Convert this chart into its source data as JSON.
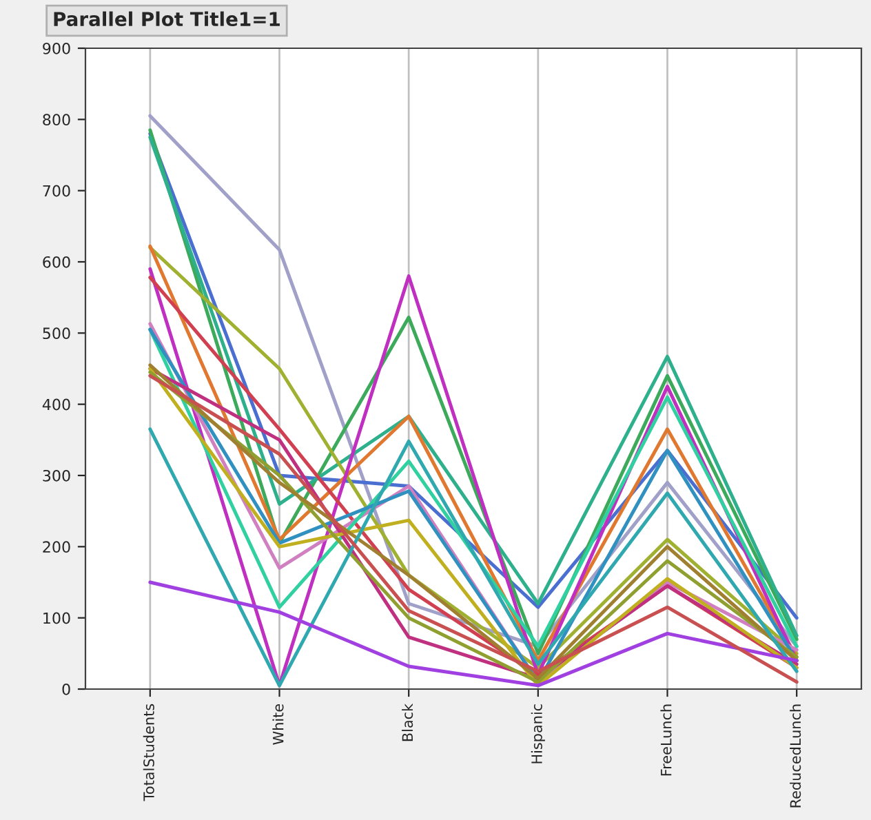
{
  "chart_data": {
    "type": "line",
    "title": "Parallel Plot Title1=1",
    "categories": [
      "TotalStudents",
      "White",
      "Black",
      "Hispanic",
      "FreeLunch",
      "ReducedLunch"
    ],
    "ylim": [
      0,
      900
    ],
    "yticks": [
      0,
      100,
      200,
      300,
      400,
      500,
      600,
      700,
      800,
      900
    ],
    "grid": "x",
    "legend": false,
    "marker": "none",
    "line_style": "solid",
    "series": [
      {
        "color": "#a0a0c8",
        "values": [
          805,
          617,
          120,
          60,
          290,
          60
        ]
      },
      {
        "color": "#4a6fd0",
        "values": [
          780,
          300,
          285,
          115,
          335,
          100
        ]
      },
      {
        "color": "#3caa5a",
        "values": [
          785,
          205,
          522,
          50,
          440,
          70
        ]
      },
      {
        "color": "#2fb08c",
        "values": [
          775,
          260,
          383,
          120,
          467,
          75
        ]
      },
      {
        "color": "#a0b030",
        "values": [
          620,
          450,
          160,
          30,
          210,
          50
        ]
      },
      {
        "color": "#e07830",
        "values": [
          622,
          210,
          383,
          40,
          365,
          45
        ]
      },
      {
        "color": "#c030c0",
        "values": [
          590,
          5,
          580,
          20,
          425,
          40
        ]
      },
      {
        "color": "#d04050",
        "values": [
          578,
          365,
          140,
          20,
          145,
          30
        ]
      },
      {
        "color": "#d080c0",
        "values": [
          513,
          170,
          285,
          10,
          150,
          55
        ]
      },
      {
        "color": "#30d0a0",
        "values": [
          505,
          115,
          320,
          60,
          410,
          60
        ]
      },
      {
        "color": "#3090c0",
        "values": [
          505,
          205,
          278,
          10,
          335,
          40
        ]
      },
      {
        "color": "#c03080",
        "values": [
          450,
          350,
          73,
          15,
          145,
          35
        ]
      },
      {
        "color": "#c0b020",
        "values": [
          450,
          200,
          237,
          5,
          155,
          30
        ]
      },
      {
        "color": "#90a030",
        "values": [
          445,
          300,
          100,
          10,
          180,
          45
        ]
      },
      {
        "color": "#a08030",
        "values": [
          455,
          290,
          160,
          15,
          200,
          40
        ]
      },
      {
        "color": "#30a8b0",
        "values": [
          365,
          5,
          348,
          35,
          275,
          25
        ]
      },
      {
        "color": "#a040e0",
        "values": [
          150,
          108,
          32,
          5,
          78,
          40
        ]
      },
      {
        "color": "#c85050",
        "values": [
          440,
          330,
          110,
          25,
          115,
          10
        ]
      }
    ]
  }
}
